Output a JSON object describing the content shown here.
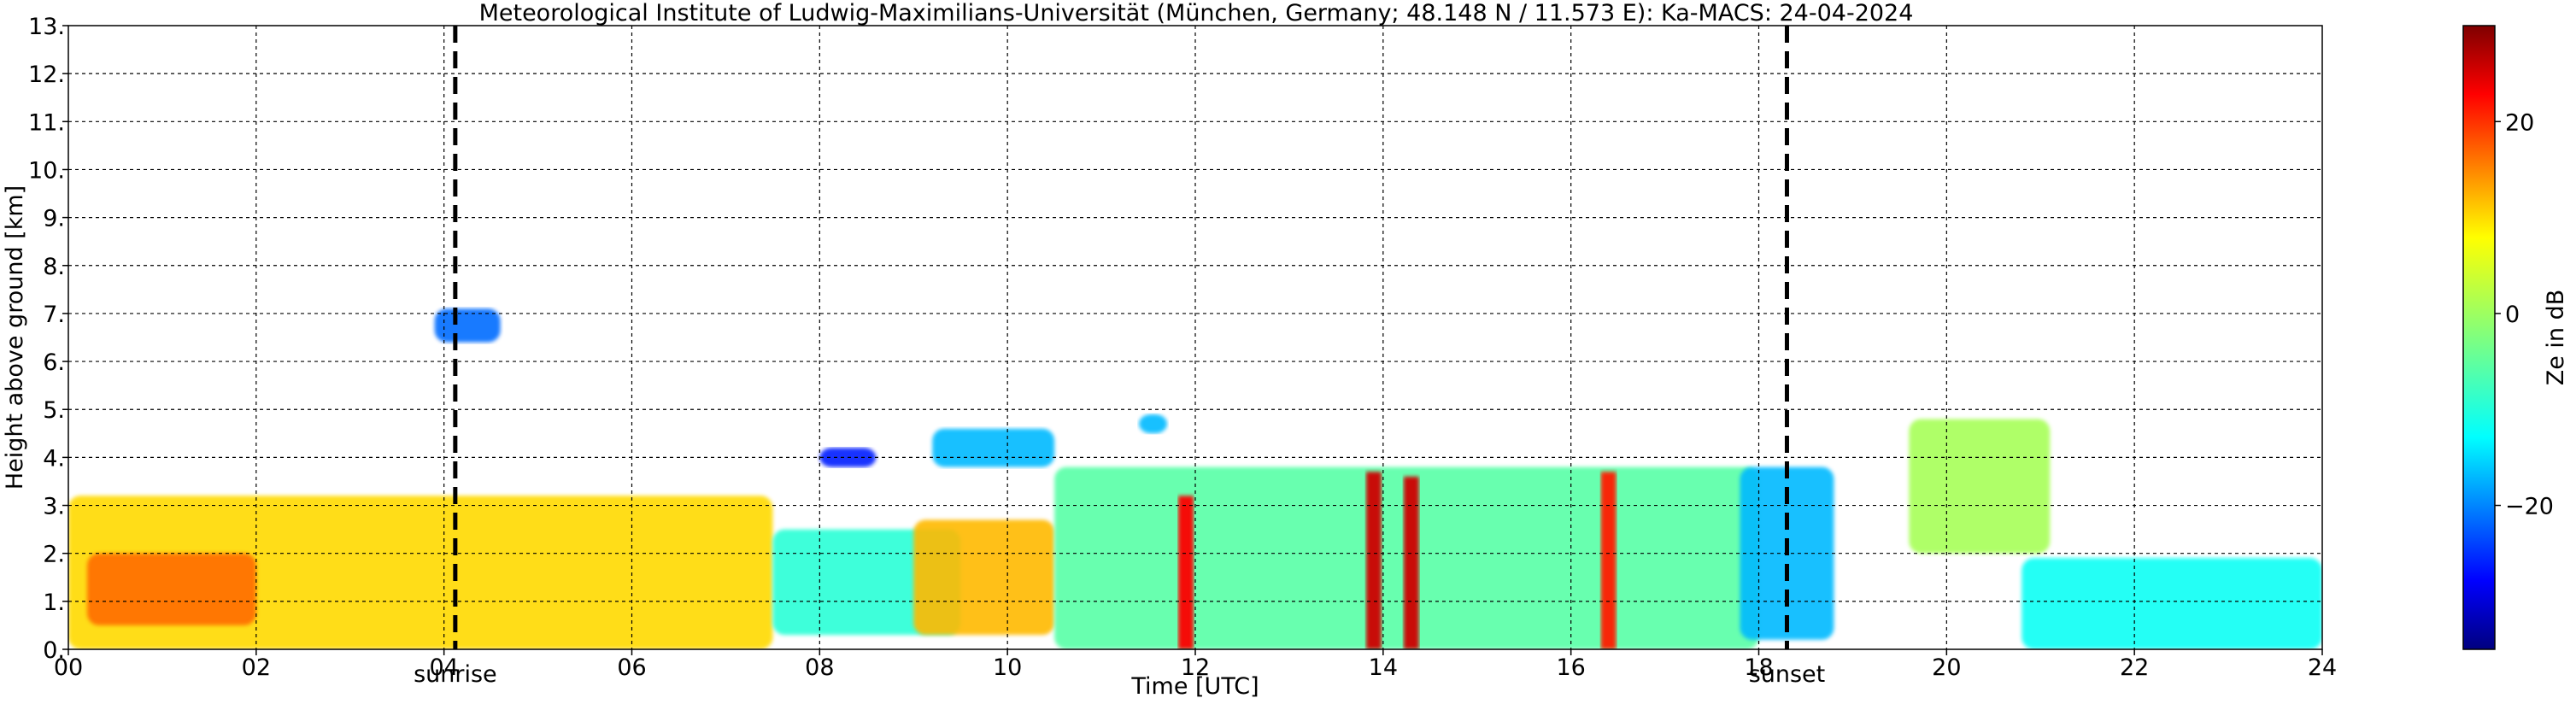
{
  "chart_data": {
    "type": "heatmap",
    "title": "Meteorological Institute of Ludwig-Maximilians-Universität (München, Germany; 48.148 N / 11.573 E):    Ka-MACS: 24-04-2024",
    "xlabel": "Time [UTC]",
    "ylabel": "Height above ground [km]",
    "xlim": [
      0,
      24
    ],
    "ylim": [
      0,
      13
    ],
    "x_ticks": [
      0,
      2,
      4,
      6,
      8,
      10,
      12,
      14,
      16,
      18,
      20,
      22,
      24
    ],
    "x_tick_labels": [
      "00",
      "02",
      "04",
      "06",
      "08",
      "10",
      "12",
      "14",
      "16",
      "18",
      "20",
      "22",
      "24"
    ],
    "y_ticks": [
      0,
      1,
      2,
      3,
      4,
      5,
      6,
      7,
      8,
      9,
      10,
      11,
      12,
      13
    ],
    "y_tick_labels": [
      "0.",
      "1.",
      "2.",
      "3.",
      "4.",
      "5.",
      "6.",
      "7.",
      "8.",
      "9.",
      "10.",
      "11.",
      "12.",
      "13."
    ],
    "grid": true,
    "colorbar": {
      "label": "Ze in dB",
      "range": [
        -35,
        30
      ],
      "ticks": [
        20,
        0,
        -20
      ],
      "tick_labels": [
        "20",
        "0",
        "−20"
      ],
      "colormap": "jet"
    },
    "annotations": [
      {
        "label": "sunrise",
        "x": 4.12
      },
      {
        "label": "sunset",
        "x": 18.3
      }
    ],
    "echo_regions": [
      {
        "x": [
          0.0,
          7.5
        ],
        "y": [
          0.0,
          3.2
        ],
        "ze": 8
      },
      {
        "x": [
          0.2,
          2.0
        ],
        "y": [
          0.5,
          2.0
        ],
        "ze": 15
      },
      {
        "x": [
          7.5,
          9.5
        ],
        "y": [
          0.3,
          2.5
        ],
        "ze": -8
      },
      {
        "x": [
          9.0,
          10.5
        ],
        "y": [
          0.3,
          2.7
        ],
        "ze": 10
      },
      {
        "x": [
          10.5,
          18.0
        ],
        "y": [
          0.0,
          3.8
        ],
        "ze": -5
      },
      {
        "x": [
          8.0,
          8.6
        ],
        "y": [
          3.8,
          4.2
        ],
        "ze": -25
      },
      {
        "x": [
          9.2,
          10.5
        ],
        "y": [
          3.8,
          4.6
        ],
        "ze": -15
      },
      {
        "x": [
          11.4,
          11.7
        ],
        "y": [
          4.5,
          4.9
        ],
        "ze": -15
      },
      {
        "x": [
          3.9,
          4.6
        ],
        "y": [
          6.4,
          7.1
        ],
        "ze": -20
      },
      {
        "x": [
          17.8,
          18.8
        ],
        "y": [
          0.2,
          3.8
        ],
        "ze": -15
      },
      {
        "x": [
          19.6,
          21.1
        ],
        "y": [
          2.0,
          4.8
        ],
        "ze": 0
      },
      {
        "x": [
          20.8,
          24.0
        ],
        "y": [
          0.0,
          1.9
        ],
        "ze": -10
      }
    ],
    "convective_cells": [
      {
        "x": 11.9,
        "y": [
          0.0,
          3.2
        ],
        "ze": 22
      },
      {
        "x": 13.9,
        "y": [
          0.0,
          3.7
        ],
        "ze": 25
      },
      {
        "x": 14.3,
        "y": [
          0.0,
          3.6
        ],
        "ze": 25
      },
      {
        "x": 16.4,
        "y": [
          0.0,
          3.7
        ],
        "ze": 20
      }
    ]
  }
}
